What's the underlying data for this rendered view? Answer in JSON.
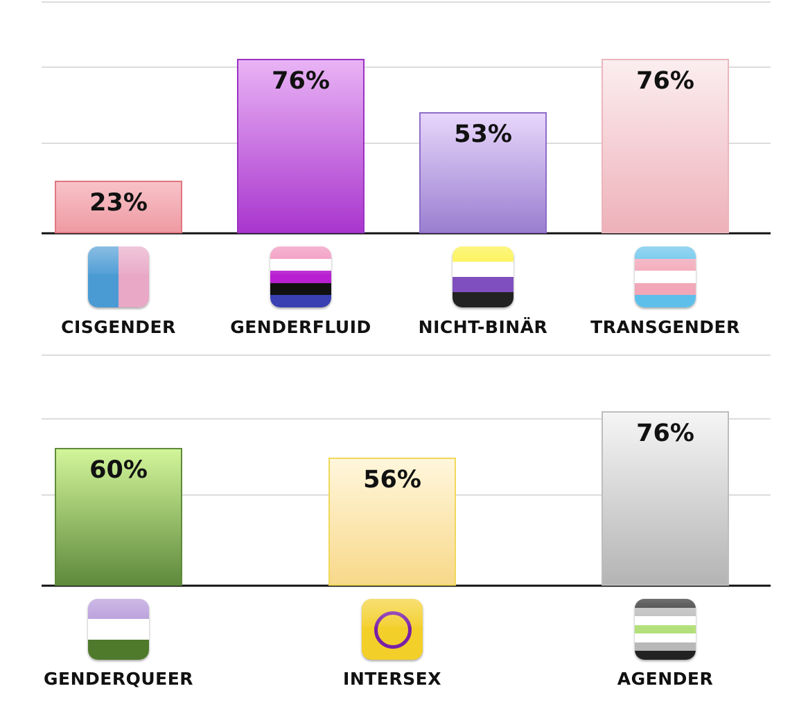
{
  "chart_data": [
    {
      "type": "bar",
      "categories": [
        "CISGENDER",
        "GENDERFLUID",
        "NICHT-BINÄR",
        "TRANSGENDER"
      ],
      "values": [
        23,
        76,
        53,
        76
      ],
      "value_labels": [
        "23%",
        "76%",
        "53%",
        "76%"
      ],
      "ylim": [
        0,
        100
      ],
      "grid": true,
      "colors": [
        {
          "top": "#f7c3c8",
          "bottom": "#ef9aa3",
          "border": "#e07580"
        },
        {
          "top": "#e9b3f5",
          "bottom": "#a936ce",
          "border": "#9a33c2"
        },
        {
          "top": "#e8d6fb",
          "bottom": "#9a7fd0",
          "border": "#8f6cc9"
        },
        {
          "top": "#fbeef0",
          "bottom": "#eeb1b9",
          "border": "#ebb5bd"
        }
      ],
      "icons": [
        "cisgender-flag-icon",
        "genderfluid-flag-icon",
        "nonbinary-flag-icon",
        "transgender-flag-icon"
      ]
    },
    {
      "type": "bar",
      "categories": [
        "GENDERQUEER",
        "INTERSEX",
        "AGENDER"
      ],
      "values": [
        60,
        56,
        76
      ],
      "value_labels": [
        "60%",
        "56%",
        "76%"
      ],
      "ylim": [
        0,
        100
      ],
      "grid": true,
      "colors": [
        {
          "top": "#d2f59a",
          "bottom": "#5f8a3c",
          "border": "#5f8a3c"
        },
        {
          "top": "#fff6dc",
          "bottom": "#f8d98a",
          "border": "#f0d85a"
        },
        {
          "top": "#f5f5f5",
          "bottom": "#b4b4b4",
          "border": "#bdbdbd"
        }
      ],
      "icons": [
        "genderqueer-flag-icon",
        "intersex-flag-icon",
        "agender-flag-icon"
      ]
    }
  ]
}
